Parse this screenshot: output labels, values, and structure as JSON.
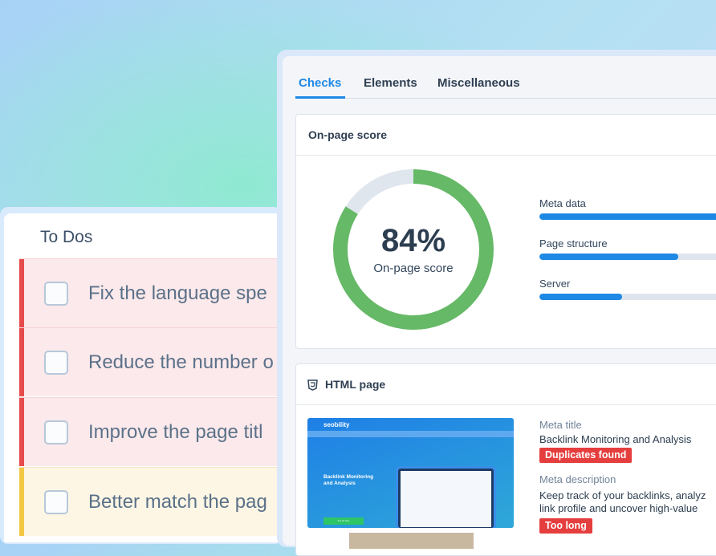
{
  "todos": {
    "title": "To Dos",
    "items": [
      {
        "text": "Fix the language spe",
        "priority": "high",
        "checked": false
      },
      {
        "text": "Reduce the number o",
        "priority": "high",
        "checked": false
      },
      {
        "text": "Improve the page titl",
        "priority": "high",
        "checked": false
      },
      {
        "text": "Better match the pag",
        "priority": "medium",
        "checked": false
      }
    ]
  },
  "tabs": [
    {
      "label": "Checks",
      "active": true
    },
    {
      "label": "Elements"
    },
    {
      "label": "Miscellaneous"
    }
  ],
  "score_card": {
    "title": "On-page score",
    "score_text": "84%",
    "score_value": 84,
    "score_label": "On-page score",
    "categories": [
      {
        "label": "Meta data",
        "percent": 100
      },
      {
        "label": "Page structure",
        "percent": 72
      },
      {
        "label": "Server",
        "percent": 43
      }
    ]
  },
  "html_card": {
    "title": "HTML page",
    "icon": "html5-icon",
    "preview": {
      "brand": "seobility",
      "hero_title_1": "Backlink Monitoring",
      "hero_title_2": "and Analysis",
      "cta": "Try for free"
    },
    "meta_title_label": "Meta title",
    "meta_title": "Backlink Monitoring and Analysis",
    "meta_title_badge": "Duplicates found",
    "meta_desc_label": "Meta description",
    "meta_desc_1": "Keep track of your backlinks, analyz",
    "meta_desc_2": "link profile and uncover high-value",
    "meta_desc_badge": "Too long"
  },
  "colors": {
    "accent": "#1e88e5",
    "score_green": "#66b966",
    "error": "#e53e3e",
    "warning": "#f2c744"
  }
}
